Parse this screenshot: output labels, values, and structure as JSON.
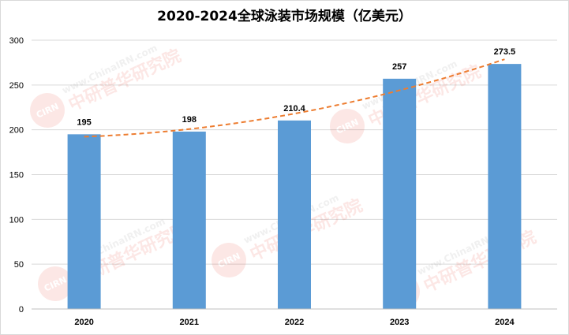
{
  "chart_data": {
    "type": "bar",
    "title": "2020-2024全球泳装市场规模（亿美元）",
    "categories": [
      "2020",
      "2021",
      "2022",
      "2023",
      "2024"
    ],
    "values": [
      195,
      198,
      210.4,
      257,
      273.5
    ],
    "value_labels": [
      "195",
      "198",
      "210.4",
      "257",
      "273.5"
    ],
    "ylim": [
      0,
      300
    ],
    "yticks": [
      0,
      50,
      100,
      150,
      200,
      250,
      300
    ],
    "grid": true,
    "trendline": {
      "type": "polynomial",
      "style": "dashed"
    },
    "colors": {
      "bar": "#5b9bd5",
      "trend": "#ed7d31",
      "grid": "#d9d9d9"
    }
  },
  "watermark": {
    "logo_text": "CIRN",
    "url_text": "www.ChinaIRN.com",
    "org_text": "中研普华研究院"
  }
}
